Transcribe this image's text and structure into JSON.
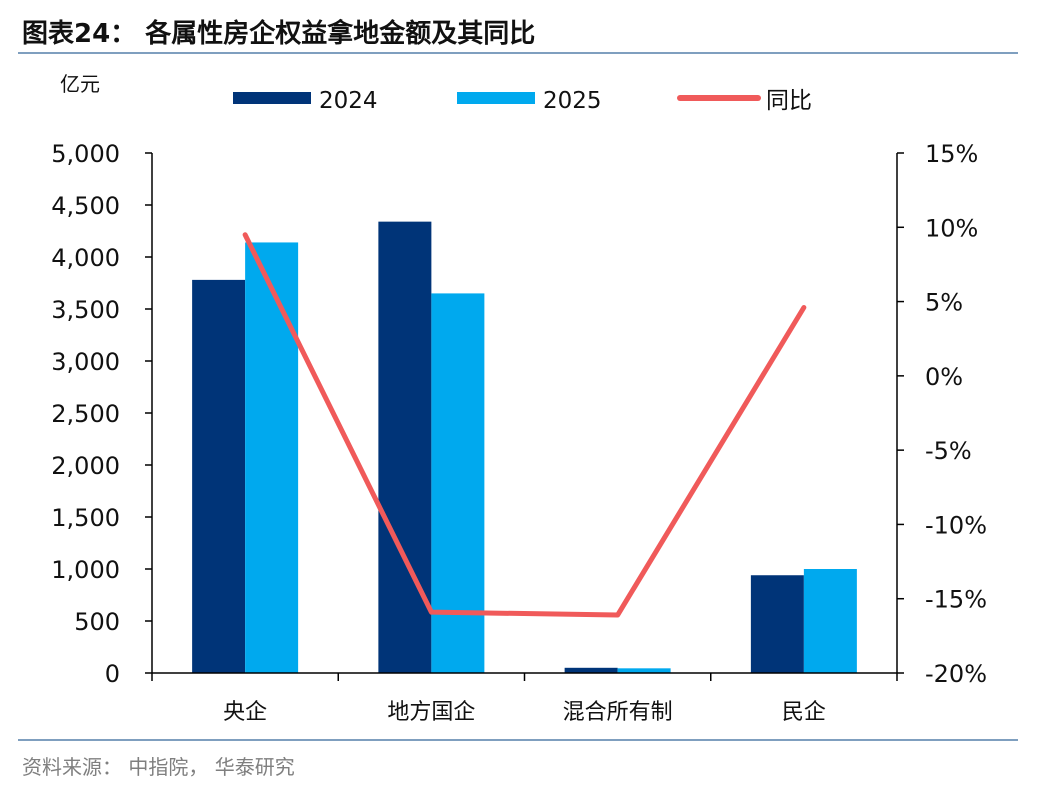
{
  "header": {
    "title": "图表24：  各属性房企权益拿地金额及其同比"
  },
  "footer": {
    "source": "资料来源：  中指院，  华泰研究"
  },
  "chart_data": {
    "type": "bar",
    "left_unit": "亿元",
    "categories": [
      "央企",
      "地方国企",
      "混合所有制",
      "民企"
    ],
    "series": [
      {
        "name": "2024",
        "kind": "bar",
        "axis": "left",
        "color": "#003478",
        "values": [
          3780,
          4340,
          50,
          940
        ]
      },
      {
        "name": "2025",
        "kind": "bar",
        "axis": "left",
        "color": "#00A9EE",
        "values": [
          4140,
          3650,
          45,
          1000
        ]
      },
      {
        "name": "同比",
        "kind": "line",
        "axis": "right",
        "color": "#F05A5A",
        "values": [
          9.5,
          -15.9,
          -16.1,
          4.6
        ]
      }
    ],
    "left_axis": {
      "min": 0,
      "max": 5000,
      "ticks": [
        0,
        500,
        1000,
        1500,
        2000,
        2500,
        3000,
        3500,
        4000,
        4500,
        5000
      ],
      "tick_labels": [
        "0",
        "500",
        "1,000",
        "1,500",
        "2,000",
        "2,500",
        "3,000",
        "3,500",
        "4,000",
        "4,500",
        "5,000"
      ]
    },
    "right_axis": {
      "min": -20,
      "max": 15,
      "ticks": [
        -20,
        -15,
        -10,
        -5,
        0,
        5,
        10,
        15
      ],
      "tick_labels": [
        "-20%",
        "-15%",
        "-10%",
        "-5%",
        "0%",
        "5%",
        "10%",
        "15%"
      ]
    },
    "grid": false,
    "legend_position": "top-center"
  }
}
